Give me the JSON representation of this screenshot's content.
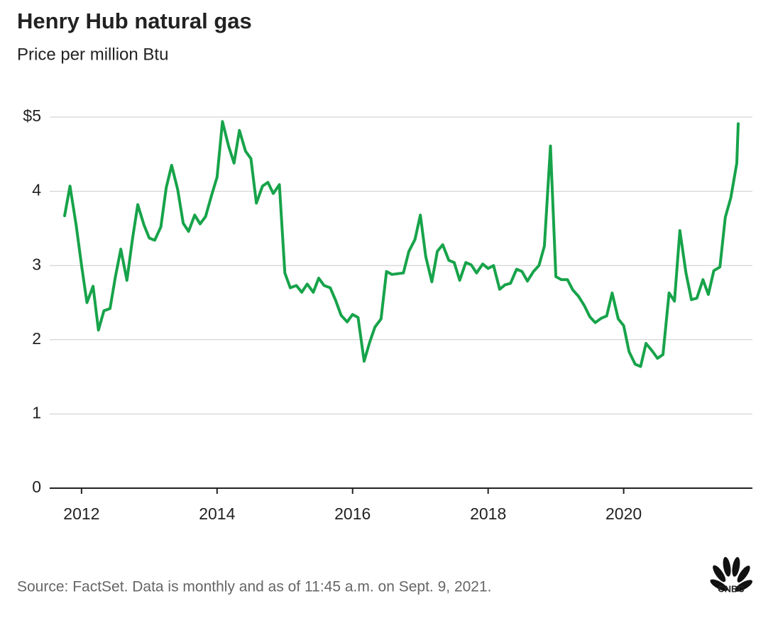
{
  "chart_data": {
    "type": "line",
    "title": "Henry Hub natural gas",
    "subtitle": "Price per million Btu",
    "source": "Source: FactSet. Data is monthly and as of 11:45 a.m. on Sept. 9, 2021.",
    "logo": "CNBC",
    "color": "#17a34a",
    "grid": true,
    "xlim": [
      2011.53,
      2021.9
    ],
    "xticks": [
      2012,
      2014,
      2016,
      2018,
      2020
    ],
    "ylim": [
      0,
      5
    ],
    "yticks": [
      {
        "value": 5,
        "label": "$5"
      },
      4,
      3,
      2,
      1,
      0
    ],
    "x": [
      2011.75,
      2011.83,
      2011.92,
      2012,
      2012.08,
      2012.17,
      2012.25,
      2012.33,
      2012.42,
      2012.5,
      2012.58,
      2012.67,
      2012.75,
      2012.83,
      2012.92,
      2013,
      2013.08,
      2013.17,
      2013.25,
      2013.33,
      2013.42,
      2013.5,
      2013.58,
      2013.67,
      2013.75,
      2013.83,
      2013.92,
      2014,
      2014.08,
      2014.17,
      2014.25,
      2014.33,
      2014.42,
      2014.5,
      2014.58,
      2014.67,
      2014.75,
      2014.83,
      2014.92,
      2015,
      2015.08,
      2015.17,
      2015.25,
      2015.33,
      2015.42,
      2015.5,
      2015.58,
      2015.67,
      2015.75,
      2015.83,
      2015.92,
      2016,
      2016.08,
      2016.17,
      2016.25,
      2016.33,
      2016.42,
      2016.5,
      2016.58,
      2016.67,
      2016.75,
      2016.83,
      2016.92,
      2017,
      2017.08,
      2017.17,
      2017.25,
      2017.33,
      2017.42,
      2017.5,
      2017.58,
      2017.67,
      2017.75,
      2017.83,
      2017.92,
      2018,
      2018.08,
      2018.17,
      2018.25,
      2018.33,
      2018.42,
      2018.5,
      2018.58,
      2018.67,
      2018.75,
      2018.83,
      2018.92,
      2019,
      2019.08,
      2019.17,
      2019.25,
      2019.33,
      2019.42,
      2019.5,
      2019.58,
      2019.67,
      2019.75,
      2019.83,
      2019.92,
      2020,
      2020.08,
      2020.17,
      2020.25,
      2020.33,
      2020.42,
      2020.5,
      2020.58,
      2020.67,
      2020.75,
      2020.83,
      2020.92,
      2021,
      2021.08,
      2021.17,
      2021.25,
      2021.33,
      2021.42,
      2021.5,
      2021.58,
      2021.67,
      2021.69
    ],
    "values": [
      3.67,
      4.07,
      3.55,
      3.0,
      2.5,
      2.72,
      2.13,
      2.39,
      2.42,
      2.85,
      3.22,
      2.8,
      3.35,
      3.82,
      3.55,
      3.37,
      3.34,
      3.52,
      4.05,
      4.35,
      4.02,
      3.57,
      3.46,
      3.68,
      3.56,
      3.66,
      3.95,
      4.19,
      4.94,
      4.61,
      4.38,
      4.82,
      4.54,
      4.44,
      3.84,
      4.07,
      4.12,
      3.97,
      4.09,
      2.9,
      2.7,
      2.73,
      2.64,
      2.75,
      2.64,
      2.83,
      2.73,
      2.7,
      2.53,
      2.33,
      2.24,
      2.34,
      2.3,
      1.71,
      1.96,
      2.17,
      2.28,
      2.92,
      2.88,
      2.89,
      2.9,
      3.19,
      3.35,
      3.68,
      3.12,
      2.78,
      3.19,
      3.28,
      3.07,
      3.04,
      2.8,
      3.04,
      3.01,
      2.9,
      3.02,
      2.96,
      3.0,
      2.68,
      2.74,
      2.76,
      2.95,
      2.92,
      2.79,
      2.92,
      3.0,
      3.26,
      4.61,
      2.85,
      2.81,
      2.81,
      2.67,
      2.59,
      2.46,
      2.31,
      2.23,
      2.29,
      2.32,
      2.63,
      2.28,
      2.19,
      1.84,
      1.67,
      1.64,
      1.95,
      1.85,
      1.75,
      1.8,
      2.63,
      2.52,
      3.47,
      2.9,
      2.54,
      2.56,
      2.81,
      2.61,
      2.93,
      2.98,
      3.65,
      3.91,
      4.38,
      4.91
    ]
  }
}
